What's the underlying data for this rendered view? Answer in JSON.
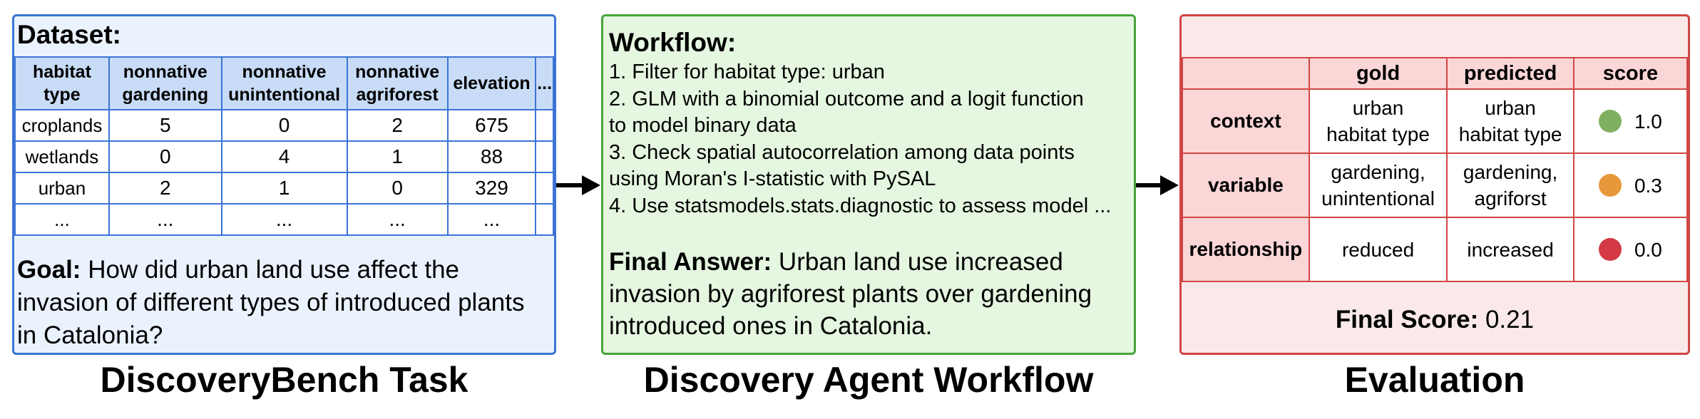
{
  "task": {
    "dataset_label": "Dataset:",
    "columns": [
      [
        "habitat",
        "type"
      ],
      [
        "nonnative",
        "gardening"
      ],
      [
        "nonnative",
        "unintentional"
      ],
      [
        "nonnative",
        "agriforest"
      ],
      [
        "elevation"
      ],
      [
        "..."
      ]
    ],
    "rows": [
      [
        "croplands",
        "5",
        "0",
        "2",
        "675",
        ""
      ],
      [
        "wetlands",
        "0",
        "4",
        "1",
        "88",
        ""
      ],
      [
        "urban",
        "2",
        "1",
        "0",
        "329",
        ""
      ],
      [
        "...",
        "...",
        "...",
        "...",
        "...",
        ""
      ]
    ],
    "goal_label": "Goal:",
    "goal_text": "How did urban land use affect the invasion of different types of introduced plants in Catalonia?",
    "caption": "DiscoveryBench Task"
  },
  "workflow": {
    "heading": "Workflow:",
    "steps": [
      "1. Filter for habitat type: urban",
      "2. GLM with a binomial outcome and a logit function",
      "to model binary data",
      "3. Check spatial autocorrelation among data points",
      "using Moran's I-statistic with PySAL",
      "4. Use statsmodels.stats.diagnostic to assess model ..."
    ],
    "final_answer_label": "Final Answer:",
    "final_answer_text": "Urban land use increased invasion by agriforest plants over gardening introduced ones in Catalonia.",
    "caption": "Discovery Agent Workflow"
  },
  "evaluation": {
    "headers": [
      "gold",
      "predicted",
      "score"
    ],
    "rows": [
      {
        "label": "context",
        "gold": [
          "urban",
          "habitat type"
        ],
        "predicted": [
          "urban",
          "habitat type"
        ],
        "score": "1.0",
        "color": "#7fb061"
      },
      {
        "label": "variable",
        "gold": [
          "gardening,",
          "unintentional"
        ],
        "predicted": [
          "gardening,",
          "agriforst"
        ],
        "score": "0.3",
        "color": "#e8983a"
      },
      {
        "label": "relationship",
        "gold": [
          "reduced"
        ],
        "predicted": [
          "increased"
        ],
        "score": "0.0",
        "color": "#d43a44"
      }
    ],
    "final_score_label": "Final Score:",
    "final_score_value": "0.21",
    "caption": "Evaluation"
  },
  "colors": {
    "task_border": "#3b74d6",
    "task_fill": "#eaf2fd",
    "workflow_border": "#47a33b",
    "workflow_fill": "#e5f7e0",
    "eval_border": "#d14545",
    "eval_fill": "#fbe9e9"
  }
}
